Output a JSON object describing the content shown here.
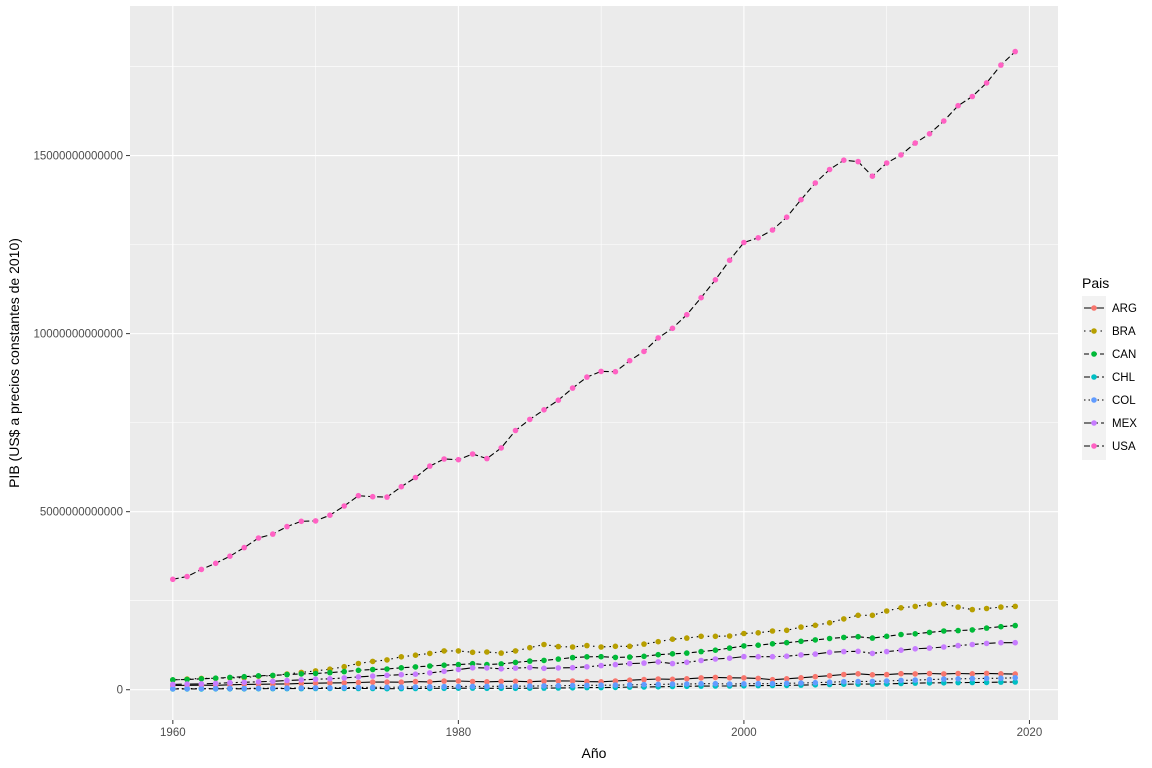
{
  "chart_data": {
    "type": "line",
    "title": "",
    "xlabel": "Año",
    "ylabel": "PIB (US$ a precios constantes de 2010)",
    "legend_title": "Pais",
    "legend_position": "right",
    "grid": true,
    "xlim": [
      1957,
      2022
    ],
    "ylim": [
      -850000000000,
      19200000000000
    ],
    "x_ticks": [
      1960,
      1980,
      2000,
      2020
    ],
    "x_tick_labels": [
      "1960",
      "1980",
      "2000",
      "2020"
    ],
    "y_ticks": [
      0,
      5000000000000,
      10000000000000,
      15000000000000
    ],
    "y_tick_labels": [
      "0",
      "5000000000000",
      "10000000000000",
      "15000000000000"
    ],
    "x": [
      1960,
      1961,
      1962,
      1963,
      1964,
      1965,
      1966,
      1967,
      1968,
      1969,
      1970,
      1971,
      1972,
      1973,
      1974,
      1975,
      1976,
      1977,
      1978,
      1979,
      1980,
      1981,
      1982,
      1983,
      1984,
      1985,
      1986,
      1987,
      1988,
      1989,
      1990,
      1991,
      1992,
      1993,
      1994,
      1995,
      1996,
      1997,
      1998,
      1999,
      2000,
      2001,
      2002,
      2003,
      2004,
      2005,
      2006,
      2007,
      2008,
      2009,
      2010,
      2011,
      2012,
      2013,
      2014,
      2015,
      2016,
      2017,
      2018,
      2019
    ],
    "series": [
      {
        "name": "ARG",
        "color": "#F8766D",
        "dash": "",
        "values": [
          120000000000,
          125000000000,
          128000000000,
          125000000000,
          138000000000,
          150000000000,
          152000000000,
          157000000000,
          164000000000,
          178000000000,
          184000000000,
          193000000000,
          196000000000,
          202000000000,
          214000000000,
          213000000000,
          212000000000,
          228000000000,
          219000000000,
          241000000000,
          244000000000,
          232000000000,
          224000000000,
          233000000000,
          237000000000,
          225000000000,
          242000000000,
          248000000000,
          245000000000,
          228000000000,
          223000000000,
          245000000000,
          268000000000,
          285000000000,
          301000000000,
          292000000000,
          308000000000,
          333000000000,
          345000000000,
          334000000000,
          331000000000,
          317000000000,
          282000000000,
          307000000000,
          335000000000,
          365000000000,
          394000000000,
          429000000000,
          446000000000,
          420000000000,
          424000000000,
          450000000000,
          445000000000,
          455000000000,
          444000000000,
          456000000000,
          447000000000,
          459000000000,
          447000000000,
          438000000000
        ]
      },
      {
        "name": "BRA",
        "color": "#B79F00",
        "dash": "1.5 4",
        "values": [
          270000000000,
          298000000000,
          318000000000,
          320000000000,
          331000000000,
          339000000000,
          379000000000,
          398000000000,
          443000000000,
          486000000000,
          530000000000,
          577000000000,
          646000000000,
          736000000000,
          796000000000,
          837000000000,
          924000000000,
          970000000000,
          1020000000000,
          1090000000000,
          1090000000000,
          1050000000000,
          1060000000000,
          1030000000000,
          1090000000000,
          1180000000000,
          1270000000000,
          1210000000000,
          1200000000000,
          1240000000000,
          1200000000000,
          1220000000000,
          1220000000000,
          1280000000000,
          1350000000000,
          1420000000000,
          1450000000000,
          1500000000000,
          1500000000000,
          1510000000000,
          1580000000000,
          1600000000000,
          1650000000000,
          1670000000000,
          1760000000000,
          1810000000000,
          1880000000000,
          1990000000000,
          2090000000000,
          2090000000000,
          2210000000000,
          2300000000000,
          2340000000000,
          2400000000000,
          2410000000000,
          2320000000000,
          2250000000000,
          2280000000000,
          2320000000000,
          2340000000000
        ]
      },
      {
        "name": "CAN",
        "color": "#00BA38",
        "dash": "5 3",
        "values": [
          280000000000,
          288000000000,
          307000000000,
          323000000000,
          345000000000,
          367000000000,
          391000000000,
          403000000000,
          424000000000,
          445000000000,
          456000000000,
          482000000000,
          510000000000,
          546000000000,
          568000000000,
          583000000000,
          617000000000,
          640000000000,
          665000000000,
          690000000000,
          705000000000,
          730000000000,
          705000000000,
          725000000000,
          767000000000,
          804000000000,
          824000000000,
          859000000000,
          902000000000,
          925000000000,
          927000000000,
          908000000000,
          917000000000,
          940000000000,
          985000000000,
          1010000000000,
          1030000000000,
          1070000000000,
          1110000000000,
          1170000000000,
          1230000000000,
          1250000000000,
          1290000000000,
          1320000000000,
          1360000000000,
          1400000000000,
          1440000000000,
          1470000000000,
          1490000000000,
          1450000000000,
          1500000000000,
          1550000000000,
          1570000000000,
          1610000000000,
          1650000000000,
          1660000000000,
          1680000000000,
          1730000000000,
          1770000000000,
          1800000000000
        ]
      },
      {
        "name": "CHL",
        "color": "#00BFC4",
        "dash": "6 3",
        "values": [
          22000000000,
          23000000000,
          24000000000,
          26000000000,
          27000000000,
          27000000000,
          30000000000,
          31000000000,
          32000000000,
          33000000000,
          34000000000,
          37000000000,
          36000000000,
          34000000000,
          35000000000,
          30000000000,
          31000000000,
          34000000000,
          37000000000,
          40000000000,
          43000000000,
          46000000000,
          40000000000,
          39000000000,
          41000000000,
          44000000000,
          46000000000,
          49000000000,
          53000000000,
          59000000000,
          61000000000,
          66000000000,
          73000000000,
          78000000000,
          82000000000,
          90000000000,
          96000000000,
          103000000000,
          106000000000,
          106000000000,
          111000000000,
          115000000000,
          118000000000,
          123000000000,
          131000000000,
          139000000000,
          147000000000,
          154000000000,
          159000000000,
          157000000000,
          165000000000,
          175000000000,
          185000000000,
          192000000000,
          195000000000,
          200000000000,
          203000000000,
          206000000000,
          214000000000,
          216000000000
        ]
      },
      {
        "name": "COL",
        "color": "#619CFF",
        "dash": "1.5 3",
        "values": [
          30000000000,
          32000000000,
          34000000000,
          35000000000,
          37000000000,
          38000000000,
          40000000000,
          42000000000,
          45000000000,
          48000000000,
          51000000000,
          54000000000,
          59000000000,
          63000000000,
          67000000000,
          69000000000,
          72000000000,
          76000000000,
          83000000000,
          87000000000,
          91000000000,
          93000000000,
          94000000000,
          96000000000,
          99000000000,
          102000000000,
          108000000000,
          114000000000,
          119000000000,
          123000000000,
          128000000000,
          131000000000,
          136000000000,
          143000000000,
          151000000000,
          159000000000,
          162000000000,
          168000000000,
          169000000000,
          162000000000,
          167000000000,
          170000000000,
          173000000000,
          180000000000,
          189000000000,
          197000000000,
          211000000000,
          225000000000,
          232000000000,
          235000000000,
          245000000000,
          261000000000,
          271000000000,
          285000000000,
          298000000000,
          307000000000,
          313000000000,
          317000000000,
          325000000000,
          335000000000
        ]
      },
      {
        "name": "MEX",
        "color": "#C77CFF",
        "dash": "9 3 2 3",
        "values": [
          150000000000,
          157000000000,
          164000000000,
          177000000000,
          197000000000,
          210000000000,
          223000000000,
          237000000000,
          259000000000,
          277000000000,
          296000000000,
          307000000000,
          333000000000,
          360000000000,
          383000000000,
          405000000000,
          422000000000,
          436000000000,
          473000000000,
          518000000000,
          567000000000,
          617000000000,
          613000000000,
          587000000000,
          608000000000,
          624000000000,
          601000000000,
          612000000000,
          619000000000,
          645000000000,
          678000000000,
          707000000000,
          733000000000,
          747000000000,
          782000000000,
          733000000000,
          769000000000,
          822000000000,
          862000000000,
          885000000000,
          931000000000,
          928000000000,
          928000000000,
          941000000000,
          978000000000,
          1000000000000,
          1050000000000,
          1070000000000,
          1080000000000,
          1020000000000,
          1070000000000,
          1110000000000,
          1150000000000,
          1170000000000,
          1200000000000,
          1240000000000,
          1270000000000,
          1300000000000,
          1320000000000,
          1320000000000
        ]
      },
      {
        "name": "USA",
        "color": "#FF61C3",
        "dash": "6 3",
        "values": [
          3100000000000,
          3180000000000,
          3380000000000,
          3550000000000,
          3750000000000,
          3990000000000,
          4260000000000,
          4370000000000,
          4580000000000,
          4730000000000,
          4740000000000,
          4900000000000,
          5160000000000,
          5450000000000,
          5420000000000,
          5410000000000,
          5700000000000,
          5960000000000,
          6280000000000,
          6480000000000,
          6460000000000,
          6620000000000,
          6490000000000,
          6790000000000,
          7280000000000,
          7590000000000,
          7860000000000,
          8130000000000,
          8470000000000,
          8780000000000,
          8940000000000,
          8930000000000,
          9240000000000,
          9500000000000,
          9880000000000,
          10150000000000,
          10530000000000,
          11010000000000,
          11510000000000,
          12060000000000,
          12560000000000,
          12690000000000,
          12910000000000,
          13270000000000,
          13760000000000,
          14230000000000,
          14610000000000,
          14870000000000,
          14830000000000,
          14420000000000,
          14790000000000,
          15020000000000,
          15350000000000,
          15610000000000,
          15970000000000,
          16400000000000,
          16660000000000,
          17040000000000,
          17540000000000,
          17920000000000
        ]
      }
    ]
  }
}
